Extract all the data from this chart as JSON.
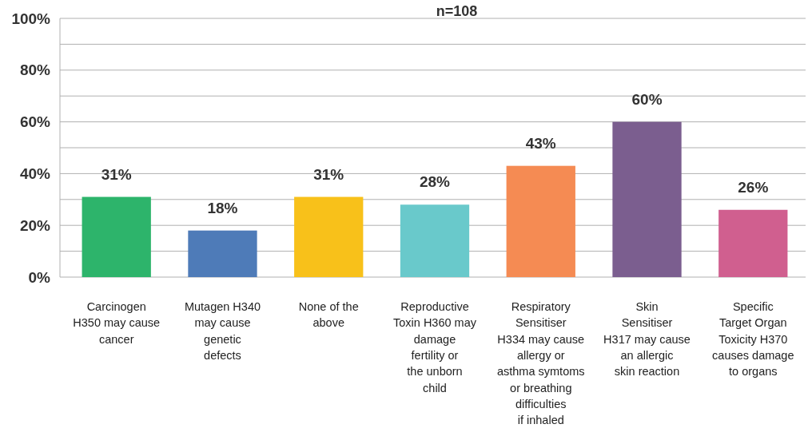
{
  "chart_data": {
    "type": "bar",
    "title": "n=108",
    "categories": [
      "Carcinogen H350 may cause cancer",
      "Mutagen H340 may cause genetic defects",
      "None of the above",
      "Reproductive Toxin H360 may damage fertility or the unborn child",
      "Respiratory Sensitiser H334 may cause allergy or asthma symtoms or breathing difficulties if inhaled",
      "Skin Sensitiser H317 may cause an allergic skin reaction",
      "Specific Target Organ Toxicity H370 causes damage to organs"
    ],
    "values": [
      31,
      18,
      31,
      28,
      43,
      60,
      26
    ],
    "value_labels": [
      "31%",
      "18%",
      "31%",
      "28%",
      "43%",
      "60%",
      "26%"
    ],
    "colors": [
      "#2db46b",
      "#4e7bb8",
      "#f8c11a",
      "#69c9cb",
      "#f58b53",
      "#7b5e8f",
      "#d05f8f"
    ],
    "ylim": [
      0,
      100
    ],
    "yticks": [
      {
        "value": 0,
        "label": "0%"
      },
      {
        "value": 10,
        "label": null
      },
      {
        "value": 20,
        "label": "20%"
      },
      {
        "value": 30,
        "label": null
      },
      {
        "value": 40,
        "label": "40%"
      },
      {
        "value": 50,
        "label": null
      },
      {
        "value": 60,
        "label": "60%"
      },
      {
        "value": 70,
        "label": null
      },
      {
        "value": 80,
        "label": "80%"
      },
      {
        "value": 90,
        "label": null
      },
      {
        "value": 100,
        "label": "100%"
      }
    ],
    "grid": "y"
  }
}
